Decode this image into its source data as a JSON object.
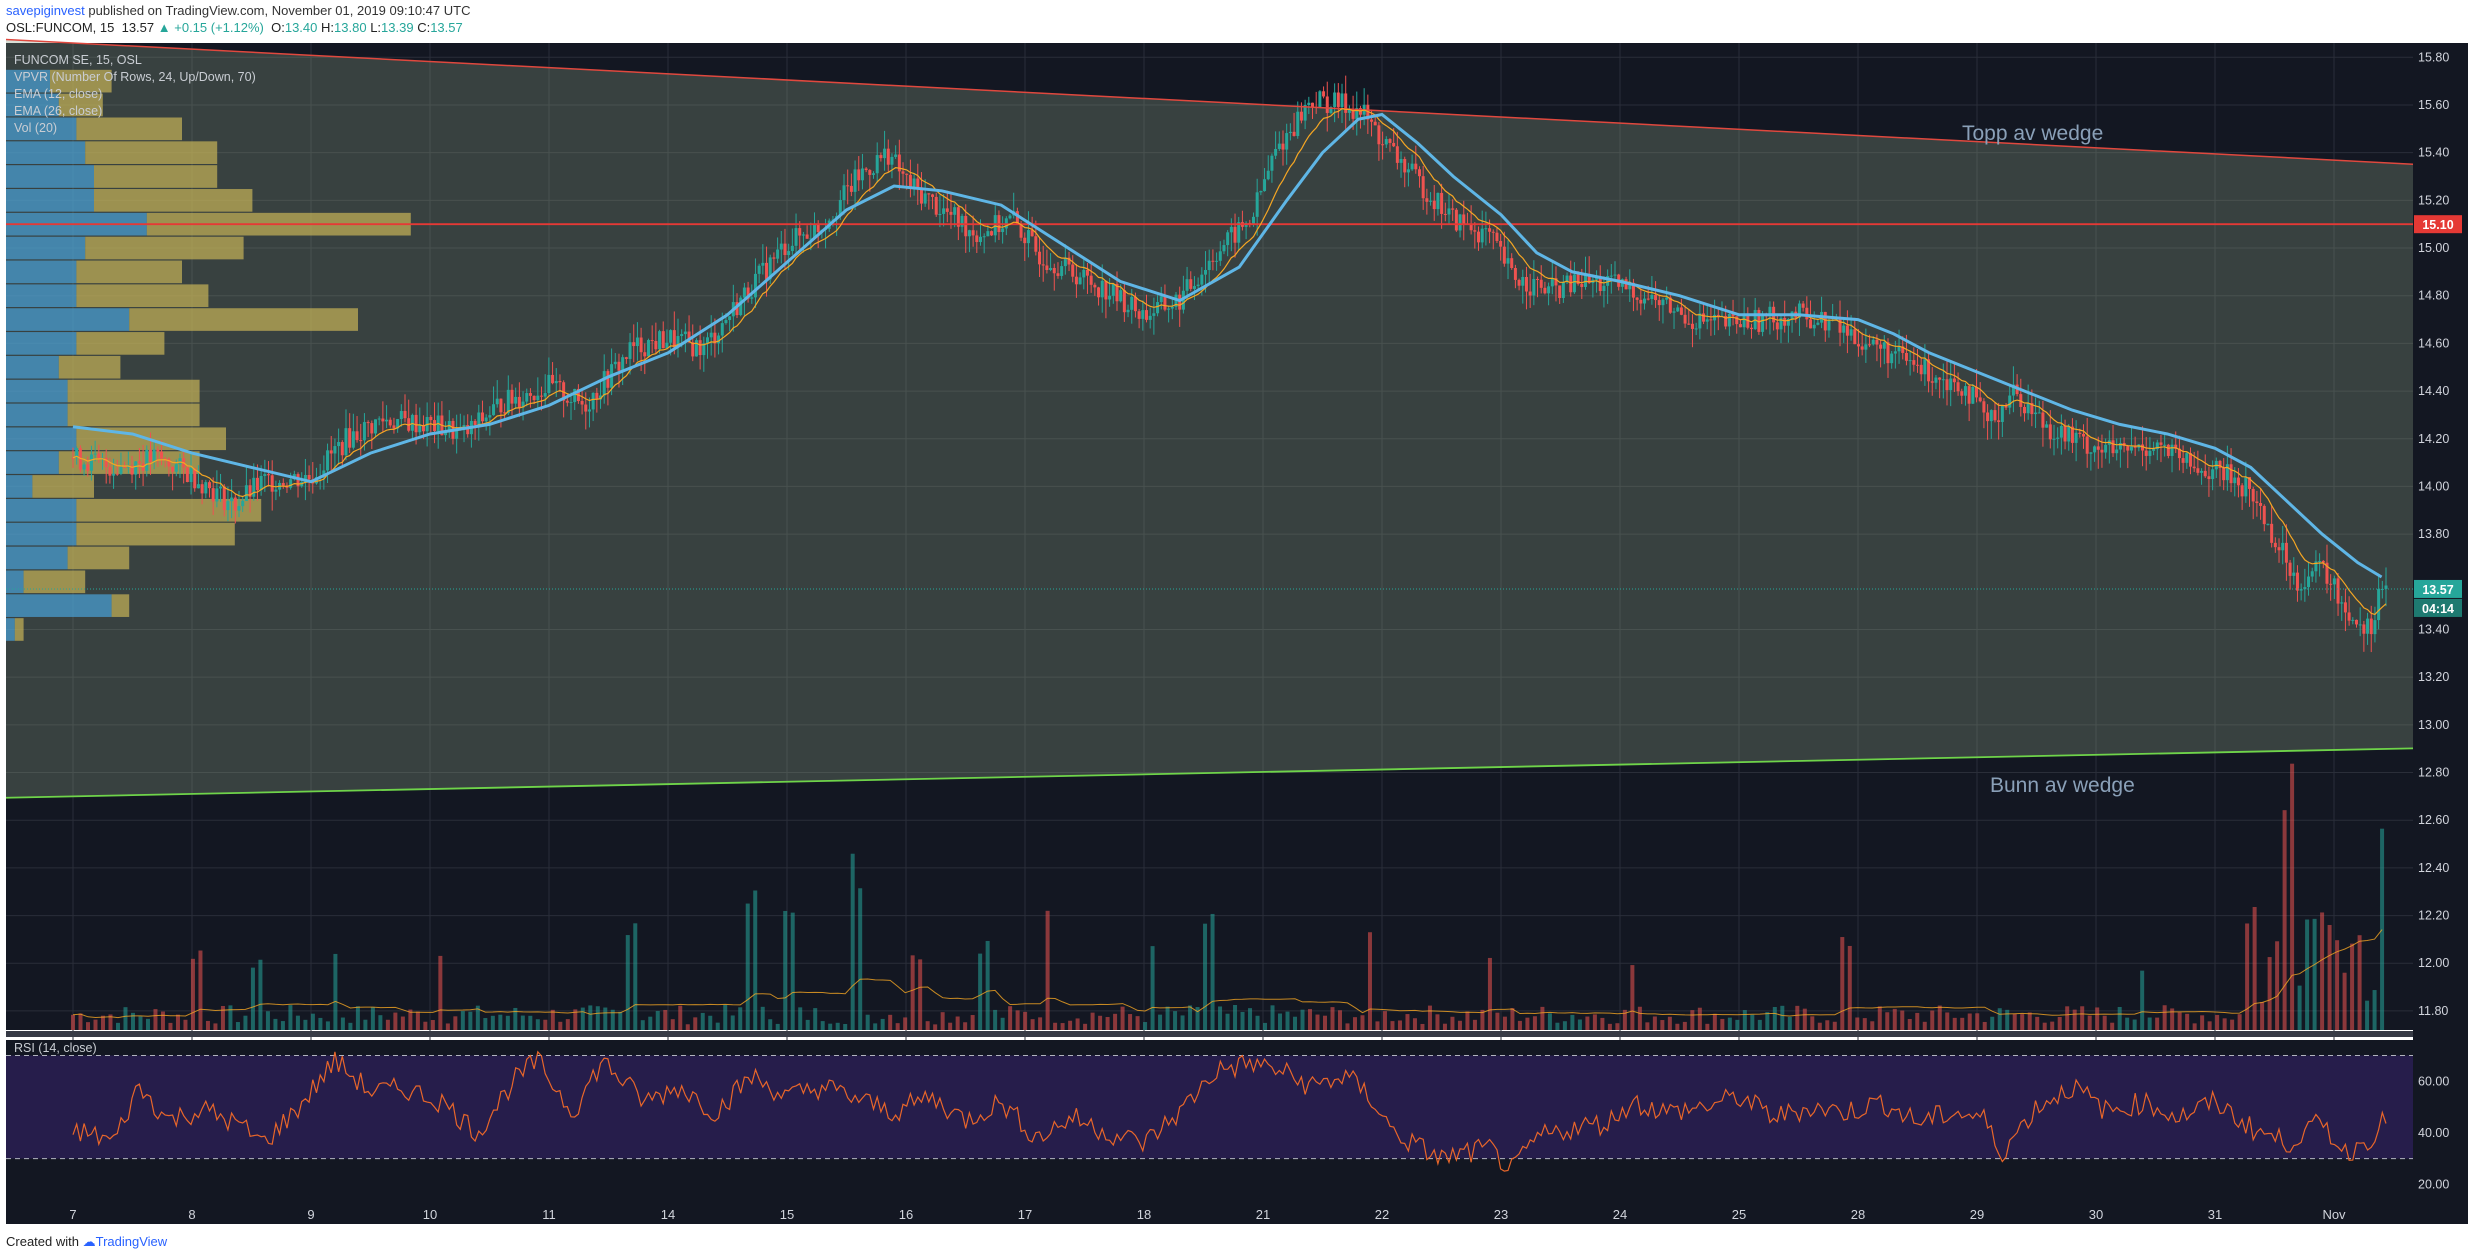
{
  "header": {
    "user": "savepiginvest",
    "published": "published on TradingView.com, November 01, 2019 09:10:47 UTC",
    "symbol": "OSL:FUNCOM, 15",
    "last": "13.57",
    "change": "▲ +0.15 (+1.12%)",
    "ohlc": {
      "o_label": "O:",
      "o": "13.40",
      "h_label": "H:",
      "h": "13.80",
      "l_label": "L:",
      "l": "13.39",
      "c_label": "C:",
      "c": "13.57"
    }
  },
  "footer": {
    "created": "Created with",
    "brand": "TradingView"
  },
  "legend": {
    "title": "FUNCOM SE, 15, OSL",
    "vpvr": "VPVR (Number Of Rows, 24, Up/Down, 70)",
    "ema12": "EMA (12, close)",
    "ema26": "EMA (26, close)",
    "vol": "Vol (20)",
    "rsi": "RSI (14, close)"
  },
  "annotations": {
    "top": "Topp av wedge",
    "bottom": "Bunn av wedge"
  },
  "price_tags": {
    "level": "15.10",
    "last": "13.57",
    "countdown": "04:14"
  },
  "colors": {
    "up": "#26a69a",
    "down": "#ef5350",
    "ema12": "#f5a623",
    "ema26": "#5fb6e6",
    "vpvr_up": "#4aa3d9",
    "vpvr_down": "#c8b457",
    "wedge_top": "#e0483e",
    "wedge_bottom": "#6fd44a",
    "rsi": "#e8662a",
    "pane_bg": "#131722",
    "rsi_band": "#2a1f52"
  },
  "chart_data": [
    {
      "type": "candlestick",
      "title": "FUNCOM SE, 15, OSL",
      "x_labels": [
        "7",
        "8",
        "9",
        "10",
        "11",
        "14",
        "15",
        "16",
        "17",
        "18",
        "21",
        "22",
        "23",
        "24",
        "25",
        "28",
        "29",
        "30",
        "31",
        "Nov"
      ],
      "y_ticks": [
        15.8,
        15.6,
        15.4,
        15.2,
        15.0,
        14.8,
        14.6,
        14.4,
        14.2,
        14.0,
        13.8,
        13.4,
        13.2,
        13.0,
        12.8,
        12.6,
        12.4,
        12.2,
        12.0,
        11.8
      ],
      "ylim": [
        11.72,
        15.86
      ],
      "close_path": [
        [
          0,
          14.12
        ],
        [
          0.35,
          14.08
        ],
        [
          0.7,
          14.12
        ],
        [
          1.0,
          14.05
        ],
        [
          1.35,
          13.92
        ],
        [
          1.6,
          14.02
        ],
        [
          2.0,
          14.04
        ],
        [
          2.3,
          14.2
        ],
        [
          2.6,
          14.28
        ],
        [
          3.0,
          14.26
        ],
        [
          3.3,
          14.22
        ],
        [
          3.6,
          14.35
        ],
        [
          4.0,
          14.42
        ],
        [
          4.3,
          14.34
        ],
        [
          4.7,
          14.58
        ],
        [
          5.0,
          14.62
        ],
        [
          5.3,
          14.58
        ],
        [
          5.7,
          14.84
        ],
        [
          6.0,
          15.02
        ],
        [
          6.3,
          15.1
        ],
        [
          6.6,
          15.3
        ],
        [
          6.85,
          15.4
        ],
        [
          7.0,
          15.28
        ],
        [
          7.3,
          15.16
        ],
        [
          7.6,
          15.06
        ],
        [
          7.9,
          15.12
        ],
        [
          8.1,
          14.98
        ],
        [
          8.4,
          14.9
        ],
        [
          8.7,
          14.82
        ],
        [
          9.0,
          14.72
        ],
        [
          9.3,
          14.78
        ],
        [
          9.6,
          14.98
        ],
        [
          9.9,
          15.12
        ],
        [
          10.1,
          15.4
        ],
        [
          10.4,
          15.62
        ],
        [
          10.7,
          15.6
        ],
        [
          10.85,
          15.56
        ],
        [
          11.0,
          15.45
        ],
        [
          11.3,
          15.28
        ],
        [
          11.6,
          15.12
        ],
        [
          11.9,
          15.05
        ],
        [
          12.1,
          14.88
        ],
        [
          12.4,
          14.82
        ],
        [
          12.7,
          14.86
        ],
        [
          13.0,
          14.84
        ],
        [
          13.3,
          14.78
        ],
        [
          13.6,
          14.7
        ],
        [
          13.9,
          14.68
        ],
        [
          14.2,
          14.7
        ],
        [
          14.5,
          14.72
        ],
        [
          14.8,
          14.68
        ],
        [
          15.0,
          14.62
        ],
        [
          15.3,
          14.55
        ],
        [
          15.6,
          14.48
        ],
        [
          15.9,
          14.42
        ],
        [
          16.1,
          14.26
        ],
        [
          16.3,
          14.4
        ],
        [
          16.6,
          14.25
        ],
        [
          16.9,
          14.18
        ],
        [
          17.2,
          14.14
        ],
        [
          17.5,
          14.18
        ],
        [
          17.8,
          14.08
        ],
        [
          18.1,
          14.05
        ],
        [
          18.3,
          13.98
        ],
        [
          18.5,
          13.78
        ],
        [
          18.7,
          13.6
        ],
        [
          18.9,
          13.66
        ],
        [
          19.1,
          13.48
        ],
        [
          19.3,
          13.4
        ],
        [
          19.4,
          13.57
        ]
      ],
      "ema26_path": [
        [
          0,
          14.25
        ],
        [
          0.5,
          14.22
        ],
        [
          1.0,
          14.14
        ],
        [
          1.5,
          14.08
        ],
        [
          2.0,
          14.02
        ],
        [
          2.5,
          14.14
        ],
        [
          3.0,
          14.22
        ],
        [
          3.5,
          14.26
        ],
        [
          4.0,
          14.34
        ],
        [
          4.5,
          14.46
        ],
        [
          5.0,
          14.56
        ],
        [
          5.5,
          14.72
        ],
        [
          6.0,
          14.94
        ],
        [
          6.5,
          15.16
        ],
        [
          6.9,
          15.26
        ],
        [
          7.3,
          15.24
        ],
        [
          7.8,
          15.18
        ],
        [
          8.3,
          15.02
        ],
        [
          8.8,
          14.86
        ],
        [
          9.3,
          14.78
        ],
        [
          9.8,
          14.92
        ],
        [
          10.2,
          15.2
        ],
        [
          10.5,
          15.4
        ],
        [
          10.8,
          15.54
        ],
        [
          11.0,
          15.56
        ],
        [
          11.3,
          15.44
        ],
        [
          11.6,
          15.3
        ],
        [
          12.0,
          15.14
        ],
        [
          12.3,
          14.98
        ],
        [
          12.6,
          14.9
        ],
        [
          13.0,
          14.86
        ],
        [
          13.5,
          14.8
        ],
        [
          14.0,
          14.72
        ],
        [
          14.5,
          14.72
        ],
        [
          15.0,
          14.7
        ],
        [
          15.3,
          14.64
        ],
        [
          15.6,
          14.56
        ],
        [
          16.0,
          14.48
        ],
        [
          16.4,
          14.4
        ],
        [
          16.8,
          14.32
        ],
        [
          17.2,
          14.26
        ],
        [
          17.6,
          14.22
        ],
        [
          18.0,
          14.16
        ],
        [
          18.3,
          14.08
        ],
        [
          18.6,
          13.94
        ],
        [
          18.9,
          13.8
        ],
        [
          19.2,
          13.68
        ],
        [
          19.4,
          13.62
        ]
      ],
      "level_line": 15.1,
      "wedge_top": {
        "from": [
          0,
          15.86
        ],
        "to": [
          20.5,
          15.33
        ],
        "label": "Topp av wedge"
      },
      "wedge_bottom": {
        "from": [
          0,
          12.7
        ],
        "to": [
          20.5,
          12.91
        ],
        "label": "Bunn av wedge"
      },
      "vpvr_rows": [
        {
          "price": 15.7,
          "up": 5,
          "down": 7
        },
        {
          "price": 15.6,
          "up": 6,
          "down": 5
        },
        {
          "price": 15.5,
          "up": 8,
          "down": 12
        },
        {
          "price": 15.4,
          "up": 9,
          "down": 15
        },
        {
          "price": 15.3,
          "up": 10,
          "down": 14
        },
        {
          "price": 15.2,
          "up": 10,
          "down": 18
        },
        {
          "price": 15.1,
          "up": 16,
          "down": 30
        },
        {
          "price": 15.0,
          "up": 9,
          "down": 18
        },
        {
          "price": 14.9,
          "up": 8,
          "down": 12
        },
        {
          "price": 14.8,
          "up": 8,
          "down": 15
        },
        {
          "price": 14.7,
          "up": 14,
          "down": 26
        },
        {
          "price": 14.6,
          "up": 8,
          "down": 10
        },
        {
          "price": 14.5,
          "up": 6,
          "down": 7
        },
        {
          "price": 14.4,
          "up": 7,
          "down": 15
        },
        {
          "price": 14.3,
          "up": 7,
          "down": 15
        },
        {
          "price": 14.2,
          "up": 8,
          "down": 17
        },
        {
          "price": 14.1,
          "up": 6,
          "down": 16
        },
        {
          "price": 14.0,
          "up": 3,
          "down": 7
        },
        {
          "price": 13.9,
          "up": 8,
          "down": 21
        },
        {
          "price": 13.8,
          "up": 8,
          "down": 18
        },
        {
          "price": 13.7,
          "up": 7,
          "down": 7
        },
        {
          "price": 13.6,
          "up": 2,
          "down": 7
        },
        {
          "price": 13.5,
          "up": 12,
          "down": 2
        },
        {
          "price": 13.4,
          "up": 1,
          "down": 1
        }
      ],
      "volume_spikes": [
        [
          1.04,
          0.3
        ],
        [
          1.54,
          0.26
        ],
        [
          2.2,
          0.3
        ],
        [
          3.1,
          0.32
        ],
        [
          4.7,
          0.42
        ],
        [
          5.7,
          0.48
        ],
        [
          6.0,
          0.42
        ],
        [
          6.6,
          0.6
        ],
        [
          7.1,
          0.3
        ],
        [
          7.65,
          0.34
        ],
        [
          8.2,
          0.4
        ],
        [
          9.07,
          0.3
        ],
        [
          9.55,
          0.4
        ],
        [
          10.9,
          0.35
        ],
        [
          11.9,
          0.24
        ],
        [
          13.1,
          0.24
        ],
        [
          14.9,
          0.34
        ],
        [
          17.4,
          0.26
        ],
        [
          18.3,
          0.44
        ],
        [
          18.6,
          0.95
        ],
        [
          18.95,
          0.42
        ],
        [
          19.4,
          0.88
        ]
      ]
    },
    {
      "type": "line",
      "title": "RSI (14, close)",
      "y_ticks": [
        60.0,
        40.0,
        20.0
      ],
      "ylim": [
        12,
        76
      ],
      "bands": [
        30,
        70
      ],
      "path": [
        [
          0,
          41
        ],
        [
          0.35,
          37
        ],
        [
          0.55,
          58
        ],
        [
          0.8,
          45
        ],
        [
          1.1,
          49
        ],
        [
          1.4,
          43
        ],
        [
          1.6,
          36
        ],
        [
          1.9,
          50
        ],
        [
          2.2,
          68
        ],
        [
          2.5,
          56
        ],
        [
          2.8,
          57
        ],
        [
          3.1,
          52
        ],
        [
          3.4,
          40
        ],
        [
          3.7,
          60
        ],
        [
          3.9,
          68
        ],
        [
          4.2,
          48
        ],
        [
          4.45,
          68
        ],
        [
          4.8,
          52
        ],
        [
          5.1,
          58
        ],
        [
          5.4,
          48
        ],
        [
          5.7,
          62
        ],
        [
          6.0,
          54
        ],
        [
          6.3,
          58
        ],
        [
          6.6,
          53
        ],
        [
          6.9,
          48
        ],
        [
          7.2,
          54
        ],
        [
          7.5,
          45
        ],
        [
          7.8,
          52
        ],
        [
          8.1,
          38
        ],
        [
          8.4,
          46
        ],
        [
          8.7,
          40
        ],
        [
          9.0,
          36
        ],
        [
          9.3,
          48
        ],
        [
          9.6,
          64
        ],
        [
          9.9,
          67
        ],
        [
          10.15,
          64
        ],
        [
          10.4,
          58
        ],
        [
          10.7,
          62
        ],
        [
          10.9,
          54
        ],
        [
          11.1,
          40
        ],
        [
          11.25,
          36
        ],
        [
          11.5,
          30
        ],
        [
          11.9,
          34
        ],
        [
          12.1,
          25
        ],
        [
          12.3,
          38
        ],
        [
          12.6,
          42
        ],
        [
          12.9,
          44
        ],
        [
          13.1,
          52
        ],
        [
          13.4,
          48
        ],
        [
          13.7,
          50
        ],
        [
          14.0,
          54
        ],
        [
          14.3,
          46
        ],
        [
          14.6,
          50
        ],
        [
          14.9,
          48
        ],
        [
          15.2,
          52
        ],
        [
          15.5,
          44
        ],
        [
          15.8,
          48
        ],
        [
          16.05,
          46
        ],
        [
          16.2,
          32
        ],
        [
          16.5,
          50
        ],
        [
          16.8,
          58
        ],
        [
          17.1,
          48
        ],
        [
          17.4,
          52
        ],
        [
          17.7,
          46
        ],
        [
          18.0,
          52
        ],
        [
          18.3,
          42
        ],
        [
          18.6,
          36
        ],
        [
          18.9,
          44
        ],
        [
          19.1,
          32
        ],
        [
          19.3,
          38
        ],
        [
          19.45,
          46
        ]
      ]
    }
  ]
}
